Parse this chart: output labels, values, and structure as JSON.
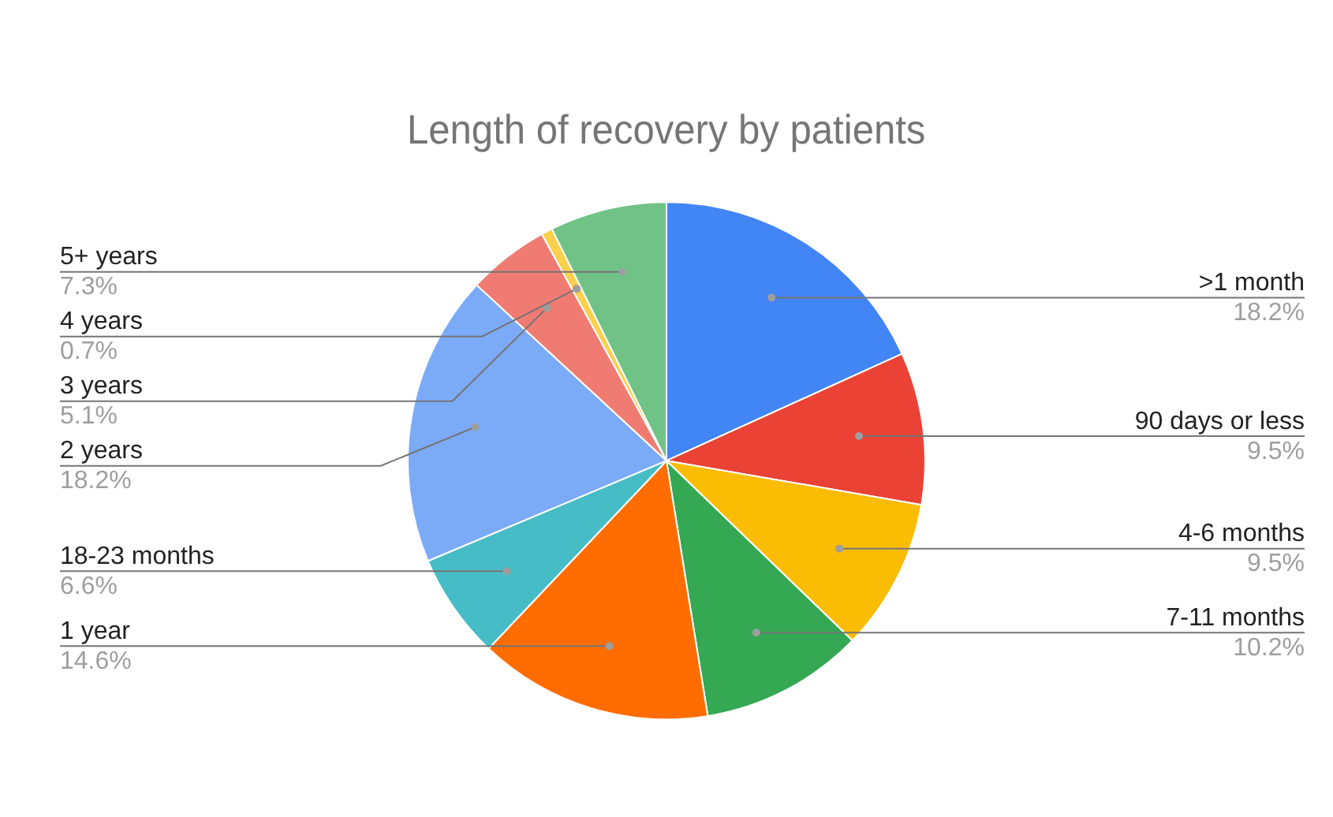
{
  "chart_data": {
    "type": "pie",
    "title": "Length of recovery by patients",
    "categories": [
      ">1 month",
      "90 days or less",
      "4-6 months",
      "7-11 months",
      "1 year",
      "18-23 months",
      "2 years",
      "3 years",
      "4 years",
      "5+ years"
    ],
    "values": [
      18.2,
      9.5,
      9.5,
      10.2,
      14.6,
      6.6,
      18.2,
      5.1,
      0.7,
      7.3
    ],
    "value_labels": [
      "18.2%",
      "9.5%",
      "9.5%",
      "10.2%",
      "14.6%",
      "6.6%",
      "18.2%",
      "5.1%",
      "0.7%",
      "7.3%"
    ],
    "colors": [
      "#4285f4",
      "#ea4335",
      "#fbbc04",
      "#34a853",
      "#ff6d01",
      "#46bdc6",
      "#7baaf7",
      "#f07b72",
      "#fcd04f",
      "#71c287"
    ],
    "legend": false
  }
}
